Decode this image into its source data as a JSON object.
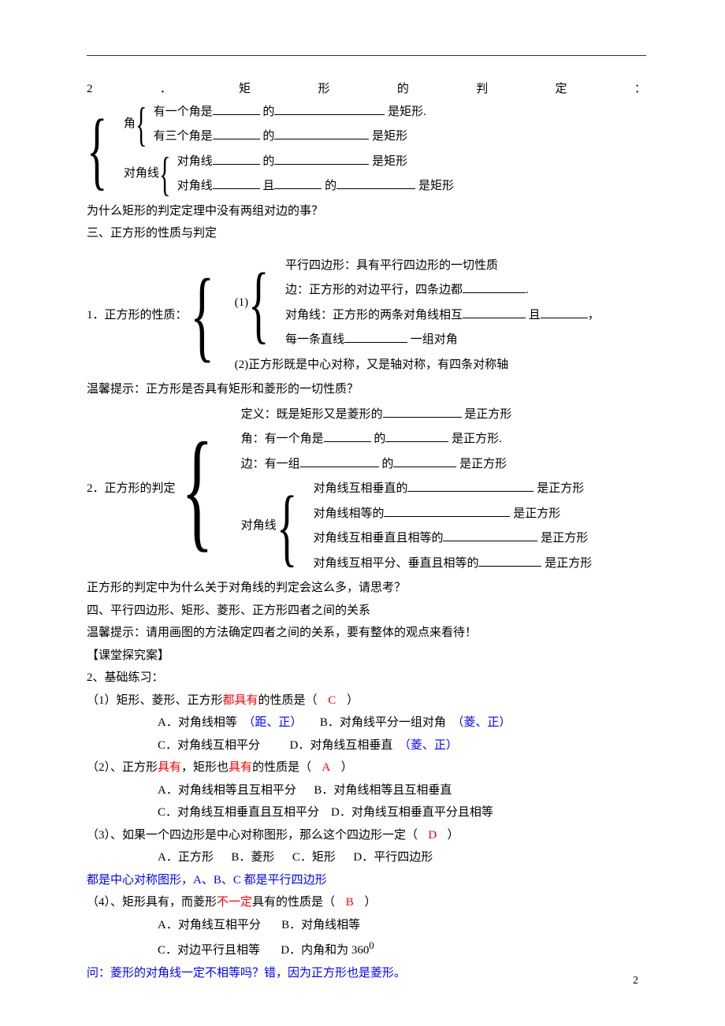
{
  "page_number": "2",
  "header": {
    "num": "2",
    "dot": "．",
    "t1": "矩",
    "t2": "形",
    "t3": "的",
    "t4": "判",
    "t5": "定",
    "colon": "："
  },
  "rect_judge": {
    "angle_label": "角",
    "angle1_a": "有一个角是",
    "angle1_b": "的",
    "angle1_c": "是矩形.",
    "angle2_a": "有三个角是",
    "angle2_b": "的",
    "angle2_c": "是矩形",
    "diag_label": "对角线",
    "diag1_a": "对角线",
    "diag1_b": "的",
    "diag1_c": "是矩形",
    "diag2_a": "对角线",
    "diag2_b": "且",
    "diag2_c": "的",
    "diag2_d": "是矩形"
  },
  "rect_q": "为什么矩形的判定定理中没有两组对边的事？",
  "sec3_title": "三、正方形的性质与判定",
  "square_prop": {
    "label": "1．正方形的性质：",
    "g1_label": "(1)",
    "l1": "平行四边形：具有平行四边形的一切性质",
    "l2a": "边：正方形的对边平行，四条边都",
    "l2b": ".",
    "l3a": "对角线：正方形的两条对角线相互",
    "l3b": "且",
    "l3c": "，",
    "l4a": "每一条直线",
    "l4b": "一组对角",
    "g2": "(2)正方形既是中心对称，又是轴对称，有四条对称轴"
  },
  "hint1": "温馨提示：正方形是否具有矩形和菱形的一切性质？",
  "square_judge": {
    "label": "2．正方形的判定",
    "l1a": "定义：既是矩形又是菱形的",
    "l1b": "是正方形",
    "l2a": "角：有一个角是",
    "l2b": "的",
    "l2c": "是正方形.",
    "l3a": "边：有一组",
    "l3b": "的",
    "l3c": "是正方形",
    "diag_label": "对角线",
    "d1a": "对角线互相垂直的",
    "d1b": "是正方形",
    "d2a": "对角线相等的",
    "d2b": "是正方形",
    "d3a": "对角线互相垂直且相等的",
    "d3b": "是正方形",
    "d4a": "对角线互相平分、垂直且相等的",
    "d4b": "是正方形"
  },
  "square_q": "正方形的判定中为什么关于对角线的判定会这么多，请思考？",
  "sec4_title": "四、平行四边形、矩形、菱形、正方形四者之间的关系",
  "hint2": "温馨提示：请用画图的方法确定四者之间的关系，要有整体的观点来看待！",
  "case_title": "【课堂探究案】",
  "ex_title": "2、基础练习：",
  "q1": {
    "stem_a": "（1）矩形、菱形、正方形",
    "stem_red": "都具有",
    "stem_b": "的性质是（",
    "ans": "C",
    "stem_c": "）",
    "optA": "A．对角线相等",
    "optA_note": "（距、正）",
    "optB": "B．对角线平分一组对角",
    "optB_note": "（菱、正）",
    "optC": "C．对角线互相平分",
    "optD": "D．对角线互相垂直",
    "optD_note": "（菱、正）"
  },
  "q2": {
    "stem_a": "（2）、正方形",
    "stem_red1": "具有",
    "stem_b": "，矩形也",
    "stem_red2": "具有",
    "stem_c": "的性质是（",
    "ans": "A",
    "stem_d": "）",
    "optA": "A．对角线相等且互相平分",
    "optB": "B．对角线相等且互相垂直",
    "optC": "C．对角线互相垂直且互相平分",
    "optD": "D．对角线互相垂直平分且相等"
  },
  "q3": {
    "stem_a": "（3）、如果一个四边形是中心对称图形，那么这个四边形一定（",
    "ans": "D",
    "stem_b": "）",
    "optA": "A．正方形",
    "optB": "B．菱形",
    "optC": "C．矩形",
    "optD": "D．平行四边形",
    "note": "都是中心对称图形，A、B、C 都是平行四边形"
  },
  "q4": {
    "stem_a": "（4）、矩形具有，而菱形",
    "stem_red": "不一定",
    "stem_b": "具有的性质是（",
    "ans": "B",
    "stem_c": "）",
    "optA": "A．对角线互相平分",
    "optB": "B．对角线相等",
    "optC": "C．对边平行且相等",
    "optD": "D．内角和为 360",
    "deg": "0",
    "note": "问：菱形的对角线一定不相等吗？错，因为正方形也是菱形。"
  }
}
